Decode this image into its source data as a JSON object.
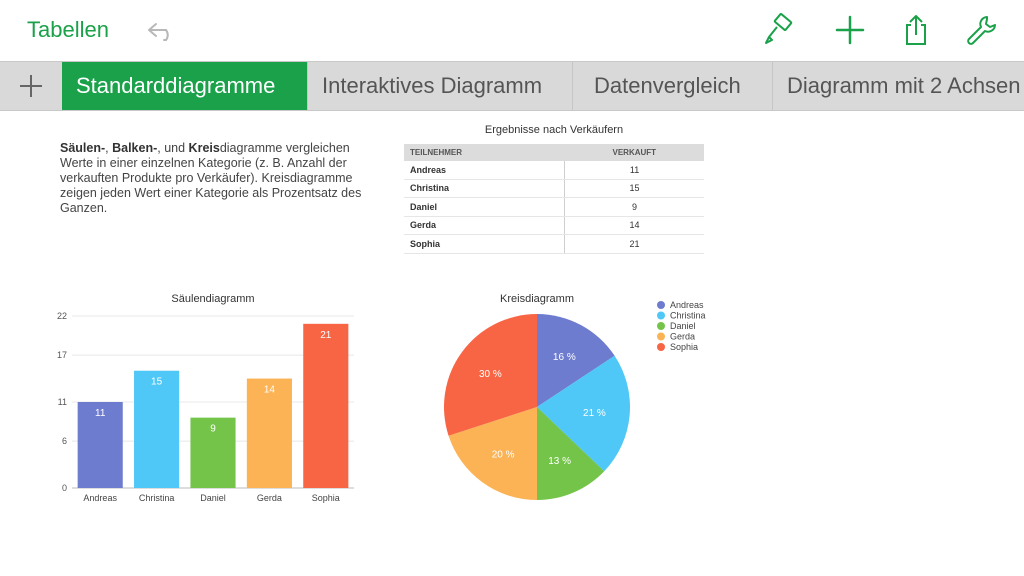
{
  "toolbar": {
    "app_title": "Tabellen",
    "icons": [
      "undo-icon",
      "paintbrush-icon",
      "plus-icon",
      "share-icon",
      "wrench-icon"
    ],
    "accent_color": "#1aa14a"
  },
  "tabs": [
    {
      "label": "Standarddiagramme",
      "active": true
    },
    {
      "label": "Interaktives Diagramm",
      "active": false
    },
    {
      "label": "Datenvergleich",
      "active": false
    },
    {
      "label": "Diagramm mit 2 Achsen",
      "active": false
    }
  ],
  "description": {
    "part1": "Säulen-",
    "part2": ", ",
    "part3": "Balken-",
    "part4": ", und ",
    "part5": "Kreis",
    "part6": "diagramme vergleichen Werte in einer einzelnen Kategorie (z. B. Anzahl der verkauften Produkte pro Verkäufer). Kreisdiagramme zeigen jeden Wert einer Kategorie als Prozentsatz des Ganzen."
  },
  "table": {
    "title": "Ergebnisse nach Verkäufern",
    "headers": [
      "TEILNEHMER",
      "VERKAUFT"
    ],
    "rows": [
      [
        "Andreas",
        "11"
      ],
      [
        "Christina",
        "15"
      ],
      [
        "Daniel",
        "9"
      ],
      [
        "Gerda",
        "14"
      ],
      [
        "Sophia",
        "21"
      ]
    ]
  },
  "colors": {
    "Andreas": "#6e7ccf",
    "Christina": "#4fc8f7",
    "Daniel": "#74c44a",
    "Gerda": "#fbb356",
    "Sophia": "#f76545"
  },
  "chart_data": [
    {
      "type": "bar",
      "title": "Säulendiagramm",
      "categories": [
        "Andreas",
        "Christina",
        "Daniel",
        "Gerda",
        "Sophia"
      ],
      "values": [
        11,
        15,
        9,
        14,
        21
      ],
      "yticks": [
        "0",
        "6",
        "11",
        "17",
        "22"
      ],
      "ylim": [
        0,
        22
      ],
      "grid": true,
      "data_labels": true
    },
    {
      "type": "pie",
      "title": "Kreisdiagramm",
      "categories": [
        "Andreas",
        "Christina",
        "Daniel",
        "Gerda",
        "Sophia"
      ],
      "values": [
        11,
        15,
        9,
        14,
        21
      ],
      "labels": [
        "16 %",
        "21 %",
        "13 %",
        "20 %",
        "30 %"
      ],
      "legend": "right"
    }
  ]
}
